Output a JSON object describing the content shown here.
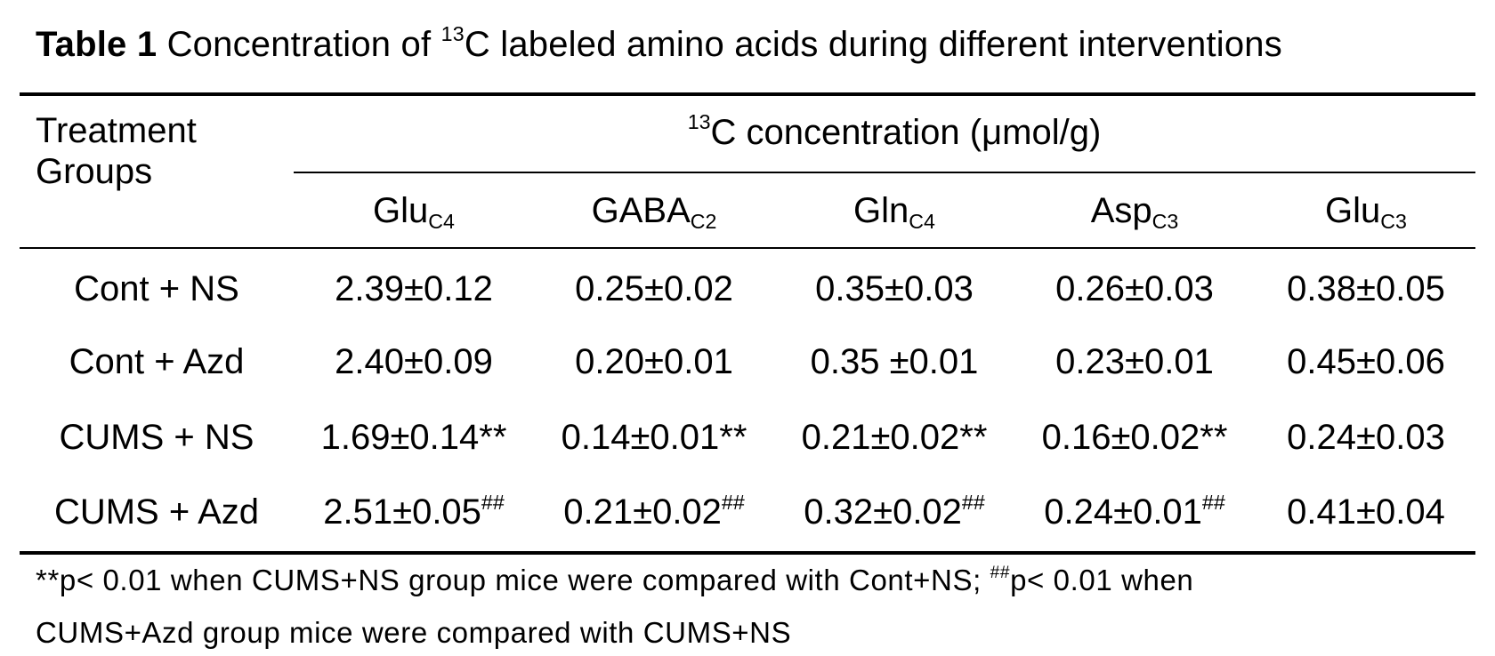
{
  "table": {
    "title_label": "Table 1",
    "title_text": "Concentration of",
    "title_sup": "13",
    "title_rest": "C labeled amino acids during different interventions",
    "group_header_line1": "Treatment",
    "group_header_line2": "Groups",
    "conc_sup": "13",
    "conc_text": "C concentration (μmol/g)",
    "columns": [
      {
        "base": "Glu",
        "sub": "C4"
      },
      {
        "base": "GABA",
        "sub": "C2"
      },
      {
        "base": "Gln",
        "sub": "C4"
      },
      {
        "base": "Asp",
        "sub": "C3"
      },
      {
        "base": "Glu",
        "sub": "C3"
      }
    ],
    "rows": [
      {
        "group": "Cont + NS",
        "cells": [
          {
            "v": "2.39±0.12",
            "m": ""
          },
          {
            "v": "0.25±0.02",
            "m": ""
          },
          {
            "v": "0.35±0.03",
            "m": ""
          },
          {
            "v": "0.26±0.03",
            "m": ""
          },
          {
            "v": "0.38±0.05",
            "m": ""
          }
        ]
      },
      {
        "group": "Cont + Azd",
        "cells": [
          {
            "v": "2.40±0.09",
            "m": ""
          },
          {
            "v": "0.20±0.01",
            "m": ""
          },
          {
            "v": "0.35 ±0.01",
            "m": ""
          },
          {
            "v": "0.23±0.01",
            "m": ""
          },
          {
            "v": "0.45±0.06",
            "m": ""
          }
        ]
      },
      {
        "group": "CUMS + NS",
        "cells": [
          {
            "v": "1.69±0.14**",
            "m": ""
          },
          {
            "v": "0.14±0.01**",
            "m": ""
          },
          {
            "v": "0.21±0.02**",
            "m": ""
          },
          {
            "v": "0.16±0.02**",
            "m": ""
          },
          {
            "v": "0.24±0.03",
            "m": ""
          }
        ]
      },
      {
        "group": "CUMS + Azd",
        "cells": [
          {
            "v": "2.51±0.05",
            "m": "##"
          },
          {
            "v": "0.21±0.02",
            "m": "##"
          },
          {
            "v": "0.32±0.02",
            "m": "##"
          },
          {
            "v": "0.24±0.01",
            "m": "##"
          },
          {
            "v": "0.41±0.04",
            "m": ""
          }
        ]
      }
    ],
    "footnote": {
      "part1": "**p< 0.01 when CUMS+NS group mice were compared with Cont+NS; ",
      "mark": "##",
      "part2": "p< 0.01 when",
      "line2": "CUMS+Azd group mice were compared with CUMS+NS"
    }
  }
}
